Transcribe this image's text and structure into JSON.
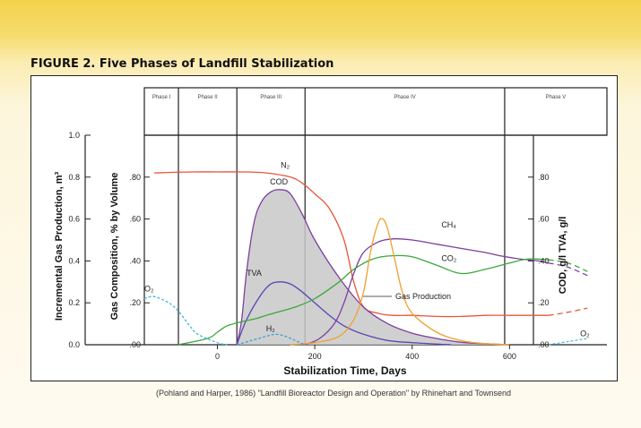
{
  "figure": {
    "title": "FIGURE 2. Five Phases of Landfill Stabilization",
    "credit": "(Pohland and Harper, 1986) \"Landfill Bioreactor Design and Operation\" by Rhinehart and Townsend"
  },
  "colors": {
    "n2": "#e8553a",
    "cod": "#7b3fa0",
    "tva": "#5a45b0",
    "ch4": "#7b3fa0",
    "co2": "#3aa83a",
    "gas_production": "#f0a030",
    "o2": "#40b8e0",
    "h2": "#40a0d0",
    "shade": "#c8c8c8"
  },
  "chart_data": {
    "type": "line",
    "title": "Five Phases of Landfill Stabilization",
    "xlabel": "Stabilization Time, Days",
    "ylabel_left_outer": "Incremental Gas Production, m³",
    "ylabel_left_inner": "Gas Composition, % by Volume",
    "ylabel_right": "COD, g/l  TVA, g/l",
    "xlim": [
      -150,
      800
    ],
    "x_ticks": [
      "0",
      "200",
      "400",
      "600"
    ],
    "outer_ticks": [
      "1.0",
      "0.8",
      "0.6",
      "0.4",
      "0.2",
      "0.0"
    ],
    "inner_ticks": [
      ".80",
      ".60",
      ".40",
      ".20",
      ".00"
    ],
    "right_ticks": [
      ".80",
      ".60",
      ".40",
      ".20",
      ".00"
    ],
    "ylim": [
      0,
      1.0
    ],
    "grid": false,
    "phases": [
      {
        "label": "Phase I",
        "start": -150,
        "end": -80
      },
      {
        "label": "Phase II",
        "start": -80,
        "end": 40
      },
      {
        "label": "Phase III",
        "start": 40,
        "end": 180
      },
      {
        "label": "Phase IV",
        "start": 180,
        "end": 590
      },
      {
        "label": "Phase V",
        "start": 590,
        "end": 800
      }
    ],
    "series": [
      {
        "name": "N2",
        "x": [
          -130,
          -50,
          0,
          50,
          100,
          150,
          175,
          200,
          230,
          260,
          280,
          300,
          330,
          360,
          400,
          450,
          500,
          550,
          600,
          680
        ],
        "y": [
          0.82,
          0.825,
          0.825,
          0.825,
          0.82,
          0.8,
          0.77,
          0.72,
          0.65,
          0.5,
          0.3,
          0.18,
          0.15,
          0.14,
          0.14,
          0.135,
          0.135,
          0.14,
          0.14,
          0.14
        ],
        "dashed_x": [
          680,
          720,
          760
        ],
        "dashed_y": [
          0.14,
          0.155,
          0.175
        ]
      },
      {
        "name": "COD",
        "x": [
          40,
          50,
          60,
          75,
          90,
          110,
          130,
          150,
          175,
          200,
          250,
          300,
          350,
          400,
          450,
          500,
          550,
          600
        ],
        "y": [
          0.0,
          0.12,
          0.35,
          0.58,
          0.68,
          0.73,
          0.74,
          0.72,
          0.62,
          0.5,
          0.32,
          0.18,
          0.1,
          0.055,
          0.03,
          0.012,
          0.005,
          0.0
        ],
        "fill": true
      },
      {
        "name": "TVA",
        "x": [
          40,
          60,
          90,
          110,
          130,
          150,
          170,
          200,
          230,
          260,
          300,
          350,
          400,
          450,
          480
        ],
        "y": [
          0.0,
          0.12,
          0.24,
          0.29,
          0.3,
          0.29,
          0.26,
          0.2,
          0.14,
          0.09,
          0.05,
          0.02,
          0.01,
          0.003,
          0.0
        ]
      },
      {
        "name": "CH4",
        "x": [
          180,
          210,
          240,
          260,
          280,
          300,
          330,
          360,
          400,
          450,
          500,
          550,
          580,
          620,
          660,
          680
        ],
        "y": [
          0.0,
          0.03,
          0.1,
          0.2,
          0.34,
          0.44,
          0.49,
          0.505,
          0.5,
          0.48,
          0.46,
          0.44,
          0.425,
          0.41,
          0.4,
          0.39
        ],
        "dashed_x": [
          680,
          720,
          760
        ],
        "dashed_y": [
          0.39,
          0.37,
          0.33
        ]
      },
      {
        "name": "CO2",
        "x": [
          -80,
          -20,
          0,
          20,
          50,
          80,
          100,
          130,
          160,
          200,
          250,
          280,
          320,
          360,
          400,
          450,
          500,
          550,
          600,
          640,
          680
        ],
        "y": [
          0.0,
          0.03,
          0.06,
          0.09,
          0.11,
          0.125,
          0.14,
          0.16,
          0.18,
          0.22,
          0.3,
          0.36,
          0.41,
          0.425,
          0.42,
          0.38,
          0.34,
          0.36,
          0.39,
          0.41,
          0.405
        ],
        "dashed_x": [
          680,
          720,
          760
        ],
        "dashed_y": [
          0.405,
          0.39,
          0.35
        ]
      },
      {
        "name": "Gas Production",
        "x": [
          150,
          200,
          250,
          280,
          300,
          315,
          330,
          340,
          350,
          365,
          380,
          400,
          450,
          500,
          550,
          600
        ],
        "y": [
          0.0,
          0.01,
          0.04,
          0.12,
          0.25,
          0.45,
          0.58,
          0.6,
          0.55,
          0.4,
          0.25,
          0.15,
          0.06,
          0.02,
          0.005,
          0.0
        ]
      },
      {
        "name": "O2",
        "x": [
          -150,
          -130,
          -100,
          -80,
          -60,
          -40,
          0,
          20
        ],
        "y": [
          0.22,
          0.23,
          0.2,
          0.16,
          0.1,
          0.05,
          0.01,
          0.0
        ],
        "late_dashed_x": [
          680,
          720,
          760
        ],
        "late_dashed_y": [
          0.0,
          0.015,
          0.03
        ]
      },
      {
        "name": "H2",
        "x": [
          40,
          70,
          100,
          120,
          140,
          160,
          180
        ],
        "y": [
          0.0,
          0.02,
          0.04,
          0.05,
          0.04,
          0.02,
          0.0
        ]
      }
    ],
    "labels": {
      "n2": "N₂",
      "cod": "COD",
      "tva": "TVA",
      "ch4": "CH₄",
      "co2": "CO₂",
      "gas_production": "Gas Production",
      "o2": "O₂",
      "o2_late": "O₂",
      "h2": "H₂"
    }
  }
}
